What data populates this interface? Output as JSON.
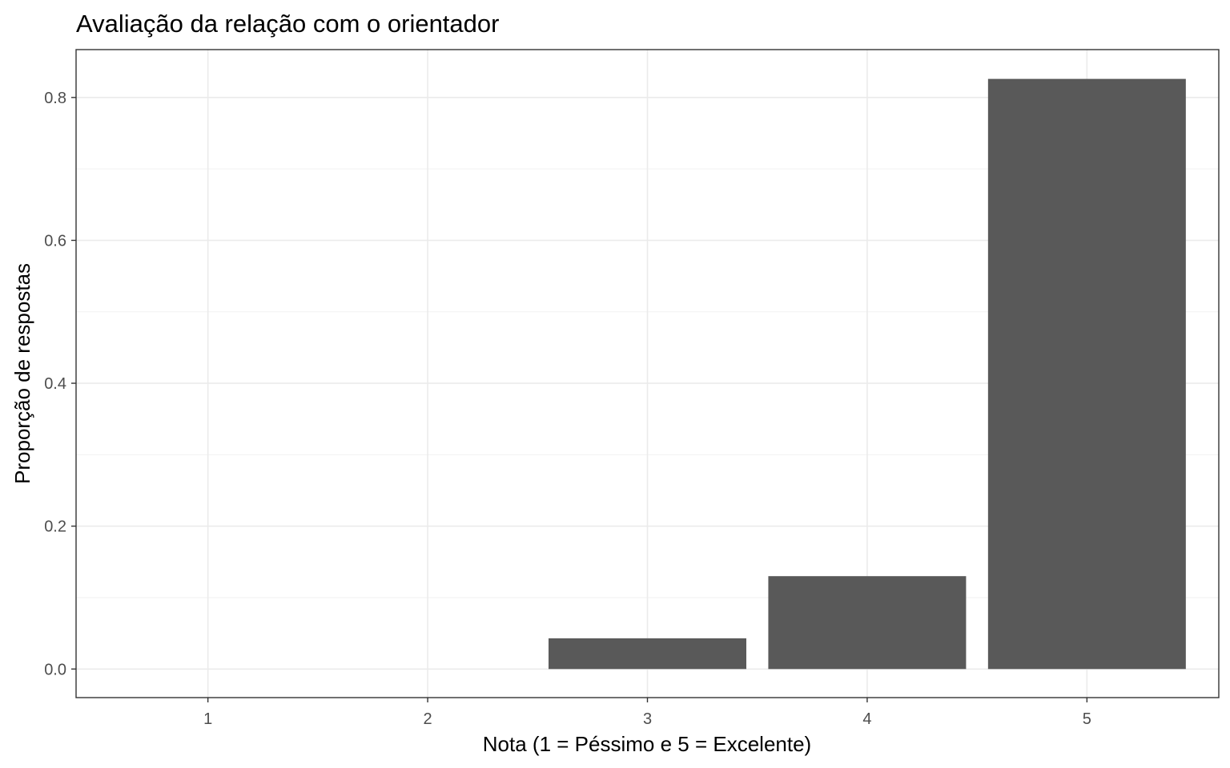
{
  "chart_data": {
    "type": "bar",
    "title": "Avaliação da relação com o orientador",
    "xlabel": "Nota (1 = Péssimo e 5 = Excelente)",
    "ylabel": "Proporção de respostas",
    "categories": [
      "1",
      "2",
      "3",
      "4",
      "5"
    ],
    "values": [
      0,
      0,
      0.043,
      0.13,
      0.826
    ],
    "ylim": [
      -0.04,
      0.867
    ],
    "yticks": [
      0.0,
      0.2,
      0.4,
      0.6,
      0.8
    ],
    "ytick_labels": [
      "0.0",
      "0.2",
      "0.4",
      "0.6",
      "0.8"
    ],
    "grid": true,
    "bar_color": "#595959"
  }
}
